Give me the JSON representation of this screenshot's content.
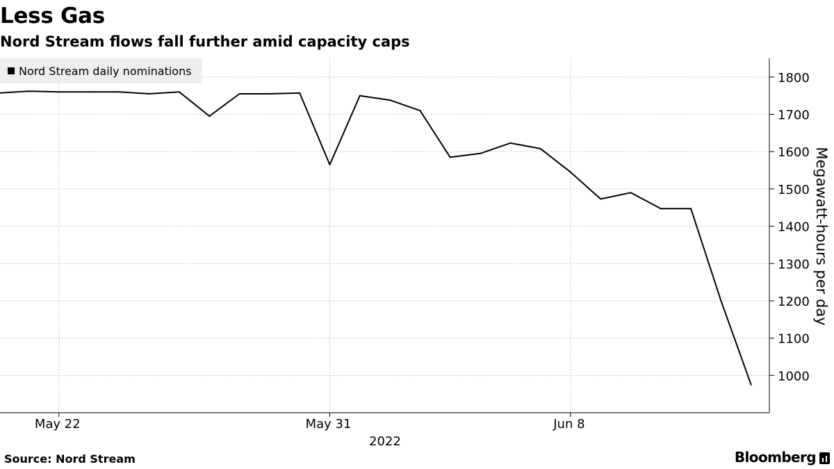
{
  "header": {
    "title": "Less Gas",
    "subtitle": "Nord Stream flows fall further amid capacity caps"
  },
  "footer": {
    "source": "Source: Nord Stream",
    "brand": "Bloomberg"
  },
  "colors": {
    "line": "#000000",
    "grid": "#c8c8c8",
    "axis": "#000000",
    "legend_bg": "#eeeeee"
  },
  "chart_data": {
    "type": "line",
    "title": "Less Gas",
    "subtitle": "Nord Stream flows fall further amid capacity caps",
    "xlabel": "2022",
    "ylabel": "Megawatt-hours per day",
    "x_ticks": [
      {
        "label": "May 22",
        "x": "2022-05-22"
      },
      {
        "label": "May 31",
        "x": "2022-05-31"
      },
      {
        "label": "Jun 8",
        "x": "2022-06-08"
      }
    ],
    "xlim": [
      "2022-05-20",
      "2022-06-15"
    ],
    "ylim": [
      900,
      1850
    ],
    "y_ticks": [
      1000,
      1100,
      1200,
      1300,
      1400,
      1500,
      1600,
      1700,
      1800
    ],
    "grid": true,
    "legend_position": "top-left",
    "series": [
      {
        "name": "Nord Stream daily nominations",
        "points": [
          {
            "x": "2022-05-20",
            "y": 1757
          },
          {
            "x": "2022-05-21",
            "y": 1762
          },
          {
            "x": "2022-05-22",
            "y": 1760
          },
          {
            "x": "2022-05-23",
            "y": 1760
          },
          {
            "x": "2022-05-24",
            "y": 1760
          },
          {
            "x": "2022-05-25",
            "y": 1755
          },
          {
            "x": "2022-05-26",
            "y": 1760
          },
          {
            "x": "2022-05-27",
            "y": 1695
          },
          {
            "x": "2022-05-28",
            "y": 1755
          },
          {
            "x": "2022-05-29",
            "y": 1755
          },
          {
            "x": "2022-05-30",
            "y": 1757
          },
          {
            "x": "2022-05-31",
            "y": 1565
          },
          {
            "x": "2022-06-01",
            "y": 1750
          },
          {
            "x": "2022-06-02",
            "y": 1738
          },
          {
            "x": "2022-06-03",
            "y": 1710
          },
          {
            "x": "2022-06-04",
            "y": 1585
          },
          {
            "x": "2022-06-05",
            "y": 1595
          },
          {
            "x": "2022-06-06",
            "y": 1623
          },
          {
            "x": "2022-06-07",
            "y": 1608
          },
          {
            "x": "2022-06-08",
            "y": 1545
          },
          {
            "x": "2022-06-09",
            "y": 1473
          },
          {
            "x": "2022-06-10",
            "y": 1490
          },
          {
            "x": "2022-06-11",
            "y": 1447
          },
          {
            "x": "2022-06-12",
            "y": 1447
          },
          {
            "x": "2022-06-13",
            "y": 1200
          },
          {
            "x": "2022-06-14",
            "y": 975
          }
        ]
      }
    ]
  }
}
